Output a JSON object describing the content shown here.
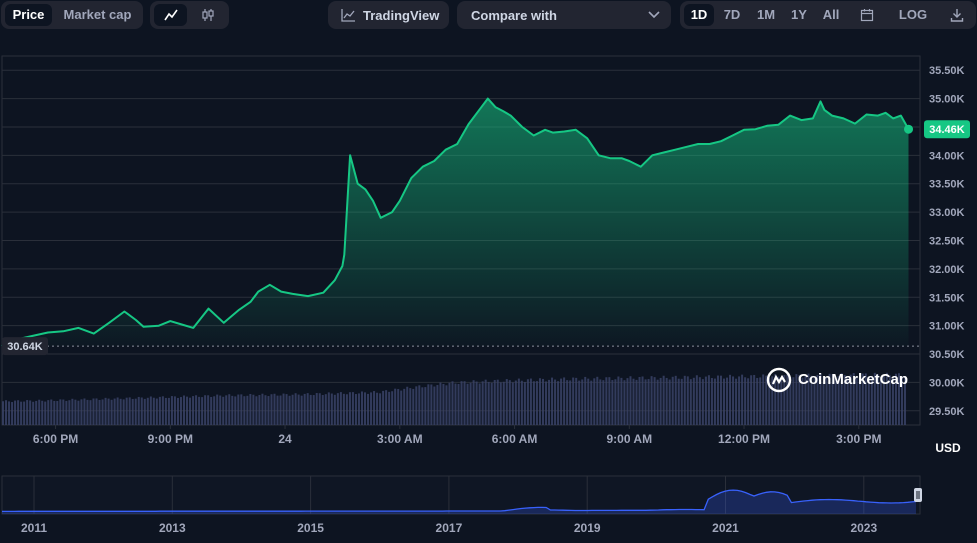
{
  "toolbar": {
    "price_label": "Price",
    "market_cap_label": "Market cap",
    "line_chart_icon": "line-chart-icon",
    "candlestick_icon": "candlestick-icon",
    "tradingview_label": "TradingView",
    "compare_label": "Compare with",
    "ranges": [
      "1D",
      "7D",
      "1M",
      "1Y",
      "All"
    ],
    "active_range": "1D",
    "calendar_icon": "calendar-icon",
    "log_label": "LOG",
    "download_icon": "download-icon"
  },
  "colors": {
    "background": "#0d1421",
    "line": "#16c784",
    "grid": "#2a2f3a",
    "volume": "#3a4266",
    "navigator_line": "#3861fb",
    "label_text": "#a1a7bb"
  },
  "chart_data": {
    "type": "area",
    "currency": "USD",
    "ylim": [
      29250,
      35750
    ],
    "y_ticks": [
      29500,
      30000,
      30500,
      31000,
      31500,
      32000,
      32500,
      33000,
      33500,
      34000,
      34500,
      35000,
      35500
    ],
    "y_tick_labels": [
      "29.50K",
      "30.00K",
      "30.50K",
      "31.00K",
      "31.50K",
      "32.00K",
      "32.50K",
      "33.00K",
      "33.50K",
      "34.00K",
      "34.50K",
      "35.00K",
      "35.50K"
    ],
    "x_ticks": [
      18,
      21,
      24,
      27,
      30,
      33,
      36,
      39
    ],
    "x_tick_labels": [
      "6:00 PM",
      "9:00 PM",
      "24",
      "3:00 AM",
      "6:00 AM",
      "9:00 AM",
      "12:00 PM",
      "3:00 PM"
    ],
    "x_range": [
      16.6,
      40.6
    ],
    "series": [
      {
        "x": [
          16.6,
          17,
          17.4,
          17.8,
          18.2,
          18.6,
          19,
          19.4,
          19.8,
          20.1,
          20.3,
          20.7,
          21,
          21.3,
          21.6,
          22,
          22.4,
          22.8,
          23.1,
          23.3,
          23.6,
          23.9,
          24.2,
          24.6,
          25,
          25.3,
          25.5,
          25.55,
          25.7,
          25.9,
          26.1,
          26.3,
          26.5,
          26.8,
          27,
          27.3,
          27.6,
          27.9,
          28.2,
          28.5,
          28.8,
          29.1,
          29.3,
          29.5,
          29.7,
          29.9,
          30.2,
          30.5,
          30.8,
          31,
          31.3,
          31.6,
          31.9,
          32.2,
          32.5,
          32.8,
          33,
          33.3,
          33.6,
          33.9,
          34.2,
          34.5,
          34.8,
          35.1,
          35.4,
          35.7,
          36,
          36.3,
          36.6,
          36.9,
          37.2,
          37.5,
          37.8,
          38,
          38.1,
          38.3,
          38.6,
          38.9,
          39.2,
          39.5,
          39.7,
          39.9,
          40.1,
          40.3
        ],
        "y": [
          30640,
          30760,
          30820,
          30880,
          30900,
          30960,
          30860,
          31050,
          31250,
          31100,
          30980,
          31000,
          31080,
          31020,
          30960,
          31300,
          31050,
          31280,
          31420,
          31600,
          31720,
          31600,
          31560,
          31520,
          31580,
          31800,
          32050,
          32250,
          34000,
          33500,
          33400,
          33200,
          32900,
          33000,
          33200,
          33600,
          33800,
          33900,
          34100,
          34200,
          34550,
          34820,
          35000,
          34850,
          34780,
          34700,
          34500,
          34350,
          34450,
          34400,
          34420,
          34450,
          34300,
          34000,
          33950,
          33950,
          33900,
          33800,
          34000,
          34050,
          34100,
          34150,
          34200,
          34200,
          34250,
          34350,
          34450,
          34460,
          34520,
          34540,
          34700,
          34620,
          34650,
          34950,
          34800,
          34700,
          34650,
          34560,
          34720,
          34700,
          34750,
          34650,
          34700,
          34460
        ]
      }
    ],
    "reference_line": {
      "value": 30640,
      "label": "30.64K"
    },
    "last_value": {
      "value": 34460,
      "label": "34.46K"
    },
    "volume": {
      "x_start": 16.6,
      "x_end": 40.6,
      "levels": [
        0.45,
        0.46,
        0.48,
        0.5,
        0.52,
        0.54,
        0.56,
        0.57,
        0.58,
        0.6,
        0.62,
        0.72,
        0.8,
        0.83,
        0.85,
        0.87,
        0.88,
        0.89,
        0.9,
        0.91,
        0.92,
        0.93,
        0.94,
        0.95,
        0.95
      ]
    },
    "navigator": {
      "x_labels": [
        "2011",
        "2013",
        "2015",
        "2017",
        "2019",
        "2021",
        "2023"
      ],
      "note": "navigator overview of all-time price"
    }
  },
  "watermark": {
    "brand": "CoinMarketCap",
    "icon": "coinmarketcap-logo-icon"
  }
}
